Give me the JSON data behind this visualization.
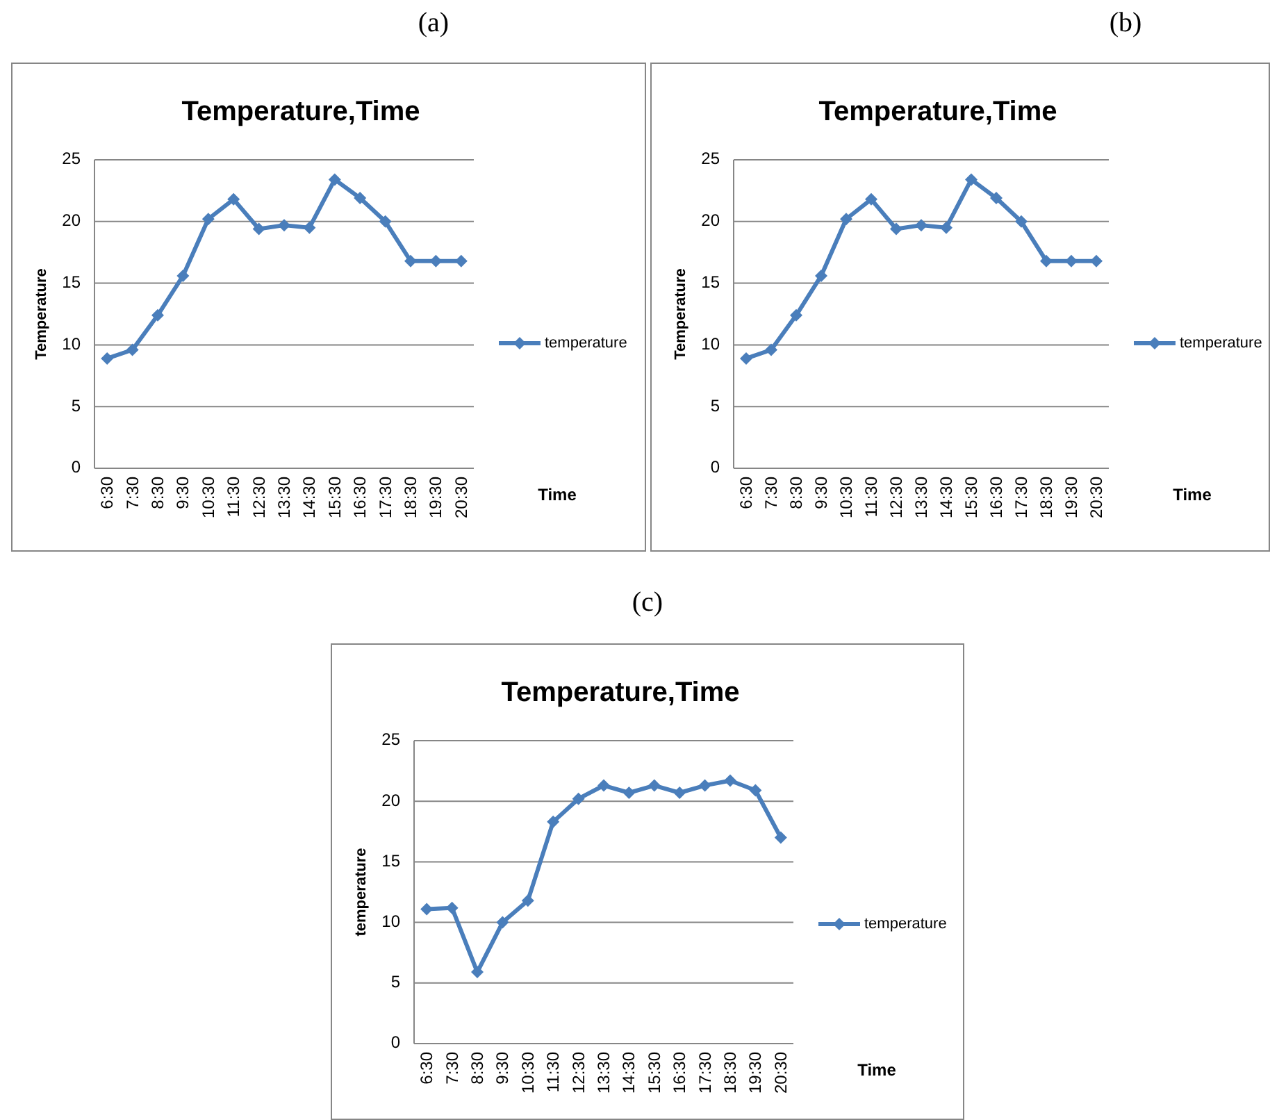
{
  "chart_data": [
    {
      "type": "line",
      "subtitle": "(a)",
      "title": "Temperature,Time",
      "xlabel": "Time",
      "ylabel": "Temperature",
      "categories": [
        "6:30",
        "7:30",
        "8:30",
        "9:30",
        "10:30",
        "11:30",
        "12:30",
        "13:30",
        "14:30",
        "15:30",
        "16:30",
        "17:30",
        "18:30",
        "19:30",
        "20:30"
      ],
      "series": [
        {
          "name": "temperature",
          "color": "#4a7ebb",
          "values": [
            8.9,
            9.6,
            12.4,
            15.6,
            20.2,
            21.8,
            19.4,
            19.7,
            19.5,
            23.4,
            21.9,
            20.0,
            16.8,
            16.8,
            16.8
          ]
        }
      ],
      "ylim": [
        0,
        25
      ],
      "yticks": [
        0,
        5,
        10,
        15,
        20,
        25
      ],
      "grid": "y",
      "legend": "right",
      "marker": "diamond"
    },
    {
      "type": "line",
      "subtitle": "(b)",
      "title": "Temperature,Time",
      "xlabel": "Time",
      "ylabel": "Temperature",
      "categories": [
        "6:30",
        "7:30",
        "8:30",
        "9:30",
        "10:30",
        "11:30",
        "12:30",
        "13:30",
        "14:30",
        "15:30",
        "16:30",
        "17:30",
        "18:30",
        "19:30",
        "20:30"
      ],
      "series": [
        {
          "name": "temperature",
          "color": "#4a7ebb",
          "values": [
            8.9,
            9.6,
            12.4,
            15.6,
            20.2,
            21.8,
            19.4,
            19.7,
            19.5,
            23.4,
            21.9,
            20.0,
            16.8,
            16.8,
            16.8
          ]
        }
      ],
      "ylim": [
        0,
        25
      ],
      "yticks": [
        0,
        5,
        10,
        15,
        20,
        25
      ],
      "grid": "y",
      "legend": "right",
      "marker": "diamond"
    },
    {
      "type": "line",
      "subtitle": "(c)",
      "title": "Temperature,Time",
      "xlabel": "Time",
      "ylabel": "temperature",
      "categories": [
        "6:30",
        "7:30",
        "8:30",
        "9:30",
        "10:30",
        "11:30",
        "12:30",
        "13:30",
        "14:30",
        "15:30",
        "16:30",
        "17:30",
        "18:30",
        "19:30",
        "20:30"
      ],
      "series": [
        {
          "name": "temperature",
          "color": "#4a7ebb",
          "values": [
            11.1,
            11.2,
            5.9,
            10.0,
            11.8,
            18.3,
            20.2,
            21.3,
            20.7,
            21.3,
            20.7,
            21.3,
            21.7,
            20.9,
            17.0
          ]
        }
      ],
      "ylim": [
        0,
        25
      ],
      "yticks": [
        0,
        5,
        10,
        15,
        20,
        25
      ],
      "grid": "y",
      "legend": "right",
      "marker": "diamond"
    }
  ]
}
